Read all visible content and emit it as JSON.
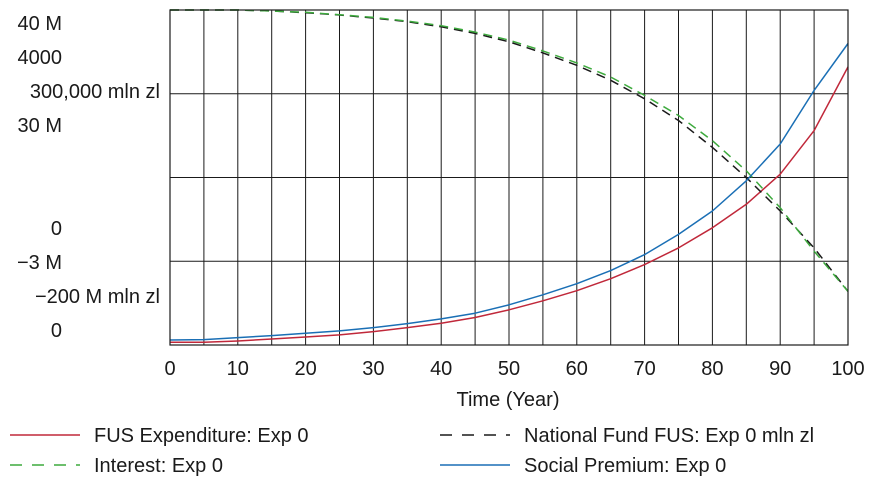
{
  "chart_data": {
    "type": "line",
    "xlabel": "Time (Year)",
    "xlim": [
      0,
      100
    ],
    "x_ticks": [
      "0",
      "10",
      "20",
      "30",
      "40",
      "50",
      "60",
      "70",
      "80",
      "90",
      "100"
    ],
    "y_tick_labels": [
      {
        "label": "40 M"
      },
      {
        "label": "4000"
      },
      {
        "label": "300,000 mln zl"
      },
      {
        "label": "30 M"
      },
      {
        "label": "0"
      },
      {
        "label": "−3 M"
      },
      {
        "label": "−200 M mln zl"
      },
      {
        "label": "0"
      }
    ],
    "grid": true,
    "legend_position": "bottom",
    "series": [
      {
        "name": "FUS Expenditure: Exp 0",
        "color": "#c0283a",
        "dash": "solid",
        "x": [
          0,
          5,
          10,
          15,
          20,
          25,
          30,
          35,
          40,
          45,
          50,
          55,
          60,
          65,
          70,
          75,
          80,
          85,
          90,
          95,
          100
        ],
        "y": [
          0.008,
          0.008,
          0.012,
          0.018,
          0.024,
          0.03,
          0.04,
          0.052,
          0.065,
          0.082,
          0.105,
          0.132,
          0.162,
          0.198,
          0.24,
          0.29,
          0.35,
          0.42,
          0.51,
          0.64,
          0.83
        ]
      },
      {
        "name": "National Fund FUS: Exp 0  mln zl",
        "color": "#1a1a1a",
        "dash": "dashed",
        "x": [
          0,
          5,
          10,
          15,
          20,
          25,
          30,
          35,
          40,
          45,
          50,
          55,
          60,
          65,
          70,
          75,
          80,
          85,
          90,
          95,
          100
        ],
        "y": [
          1.0,
          1.0,
          1.0,
          0.997,
          0.992,
          0.985,
          0.976,
          0.965,
          0.95,
          0.93,
          0.905,
          0.872,
          0.835,
          0.79,
          0.735,
          0.67,
          0.59,
          0.5,
          0.4,
          0.29,
          0.16
        ]
      },
      {
        "name": "Interest: Exp 0",
        "color": "#3daa3d",
        "dash": "dashed",
        "x": [
          0,
          5,
          10,
          15,
          20,
          25,
          30,
          35,
          40,
          45,
          50,
          55,
          60,
          65,
          70,
          75,
          80,
          85,
          90,
          95,
          100
        ],
        "y": [
          1.0,
          1.0,
          1.0,
          0.997,
          0.993,
          0.986,
          0.978,
          0.967,
          0.953,
          0.934,
          0.91,
          0.878,
          0.842,
          0.8,
          0.745,
          0.685,
          0.61,
          0.52,
          0.41,
          0.28,
          0.16
        ]
      },
      {
        "name": "Social Premium: Exp 0",
        "color": "#1a6fb5",
        "dash": "solid",
        "x": [
          0,
          5,
          10,
          15,
          20,
          25,
          30,
          35,
          40,
          45,
          50,
          55,
          60,
          65,
          70,
          75,
          80,
          85,
          90,
          95,
          100
        ],
        "y": [
          0.015,
          0.016,
          0.022,
          0.028,
          0.035,
          0.042,
          0.052,
          0.064,
          0.078,
          0.095,
          0.12,
          0.15,
          0.183,
          0.222,
          0.27,
          0.33,
          0.4,
          0.49,
          0.6,
          0.76,
          0.9
        ]
      }
    ]
  }
}
